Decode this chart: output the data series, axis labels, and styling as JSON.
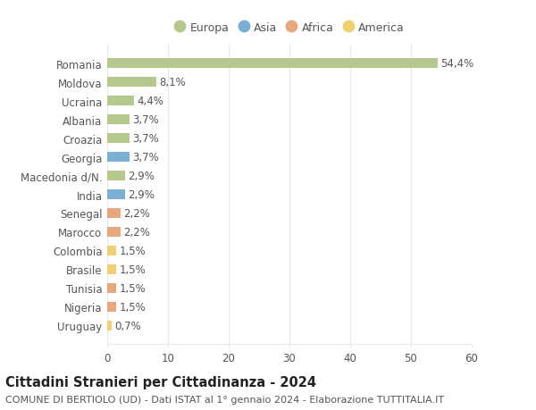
{
  "countries": [
    "Romania",
    "Moldova",
    "Ucraina",
    "Albania",
    "Croazia",
    "Georgia",
    "Macedonia d/N.",
    "India",
    "Senegal",
    "Marocco",
    "Colombia",
    "Brasile",
    "Tunisia",
    "Nigeria",
    "Uruguay"
  ],
  "values": [
    54.4,
    8.1,
    4.4,
    3.7,
    3.7,
    3.7,
    2.9,
    2.9,
    2.2,
    2.2,
    1.5,
    1.5,
    1.5,
    1.5,
    0.7
  ],
  "labels": [
    "54,4%",
    "8,1%",
    "4,4%",
    "3,7%",
    "3,7%",
    "3,7%",
    "2,9%",
    "2,9%",
    "2,2%",
    "2,2%",
    "1,5%",
    "1,5%",
    "1,5%",
    "1,5%",
    "0,7%"
  ],
  "categories": [
    "Europa",
    "Europa",
    "Europa",
    "Europa",
    "Europa",
    "Asia",
    "Europa",
    "Asia",
    "Africa",
    "Africa",
    "America",
    "America",
    "Africa",
    "Africa",
    "America"
  ],
  "colors": {
    "Europa": "#b5c98e",
    "Asia": "#7bafd4",
    "Africa": "#e8a87c",
    "America": "#f0d070"
  },
  "legend_order": [
    "Europa",
    "Asia",
    "Africa",
    "America"
  ],
  "title": "Cittadini Stranieri per Cittadinanza - 2024",
  "subtitle": "COMUNE DI BERTIOLO (UD) - Dati ISTAT al 1° gennaio 2024 - Elaborazione TUTTITALIA.IT",
  "xlim": [
    0,
    60
  ],
  "xticks": [
    0,
    10,
    20,
    30,
    40,
    50,
    60
  ],
  "background_color": "#ffffff",
  "grid_color": "#e8e8e8",
  "bar_height": 0.55,
  "label_fontsize": 8.5,
  "title_fontsize": 10.5,
  "subtitle_fontsize": 8,
  "tick_fontsize": 8.5,
  "legend_fontsize": 9
}
